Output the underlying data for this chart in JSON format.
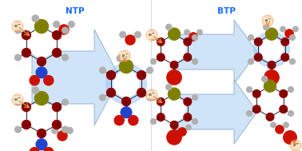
{
  "title_ntp": "NTP",
  "title_btp": "BTP",
  "title_color": "#1a6aff",
  "title_fontsize": 7.5,
  "bg_color": "#ffffff",
  "arrow_color_light": "#d0e4f8",
  "arrow_color_dark": "#b0c8e8",
  "arrow_edge": "#8aaad0",
  "ring_dark": "#6b0000",
  "ring_interior": "#ffffff",
  "carbon_color": "#8b0000",
  "sulfur_color": "#808000",
  "hydrogen_color": "#b0b0b0",
  "nitrogen_color": "#2244cc",
  "oxygen_color": "#cc1100",
  "bromine_color": "#cc1100",
  "bond_color": "#222222",
  "glow_blue": "#a0c8ff",
  "glow_orange": "#f5a060",
  "e_bg": "#fde8c8",
  "e_text": "#111111",
  "e_arrow_color": "#e09050"
}
